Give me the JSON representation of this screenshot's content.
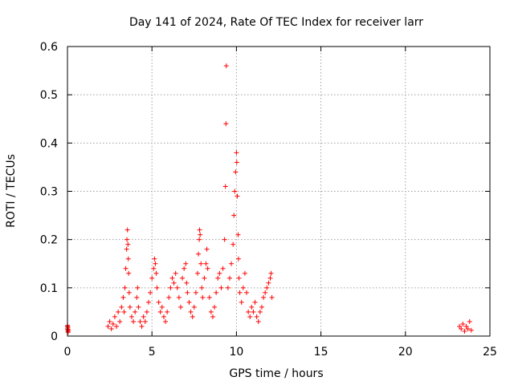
{
  "chart_data": {
    "type": "scatter",
    "title": "Day 141 of 2024, Rate Of TEC Index for receiver larr",
    "xlabel": "GPS time / hours",
    "ylabel": "ROTI / TECUs",
    "xlim": [
      0,
      25
    ],
    "ylim": [
      0,
      0.6
    ],
    "xticks": [
      0,
      5,
      10,
      15,
      20,
      25
    ],
    "yticks": [
      0,
      0.1,
      0.2,
      0.3,
      0.4,
      0.5,
      0.6
    ],
    "xtick_labels": [
      "0",
      "5",
      "10",
      "15",
      "20",
      "25"
    ],
    "ytick_labels": [
      "0",
      "0.1",
      "0.2",
      "0.3",
      "0.4",
      "0.5",
      "0.6"
    ],
    "grid": true,
    "marker": "+",
    "color": "#ff0000",
    "series": [
      {
        "name": "ROTI",
        "points": [
          [
            0.0,
            0.02
          ],
          [
            0.0,
            0.015
          ],
          [
            0.02,
            0.01
          ],
          [
            0.03,
            0.018
          ],
          [
            0.05,
            0.012
          ],
          [
            0.01,
            0.022
          ],
          [
            0.04,
            0.008
          ],
          [
            0.02,
            0.014
          ],
          [
            2.4,
            0.02
          ],
          [
            2.5,
            0.03
          ],
          [
            2.6,
            0.015
          ],
          [
            2.7,
            0.025
          ],
          [
            2.8,
            0.04
          ],
          [
            2.9,
            0.02
          ],
          [
            3.0,
            0.05
          ],
          [
            3.1,
            0.03
          ],
          [
            3.2,
            0.06
          ],
          [
            3.3,
            0.08
          ],
          [
            3.35,
            0.05
          ],
          [
            3.4,
            0.1
          ],
          [
            3.45,
            0.14
          ],
          [
            3.5,
            0.18
          ],
          [
            3.52,
            0.2
          ],
          [
            3.55,
            0.22
          ],
          [
            3.58,
            0.19
          ],
          [
            3.6,
            0.16
          ],
          [
            3.62,
            0.13
          ],
          [
            3.65,
            0.09
          ],
          [
            3.7,
            0.06
          ],
          [
            3.8,
            0.04
          ],
          [
            3.9,
            0.03
          ],
          [
            4.0,
            0.05
          ],
          [
            4.1,
            0.08
          ],
          [
            4.15,
            0.1
          ],
          [
            4.2,
            0.06
          ],
          [
            4.3,
            0.03
          ],
          [
            4.4,
            0.02
          ],
          [
            4.5,
            0.04
          ],
          [
            4.6,
            0.03
          ],
          [
            4.7,
            0.05
          ],
          [
            4.8,
            0.07
          ],
          [
            4.9,
            0.09
          ],
          [
            5.0,
            0.12
          ],
          [
            5.1,
            0.14
          ],
          [
            5.15,
            0.16
          ],
          [
            5.2,
            0.15
          ],
          [
            5.25,
            0.13
          ],
          [
            5.3,
            0.1
          ],
          [
            5.4,
            0.07
          ],
          [
            5.5,
            0.05
          ],
          [
            5.6,
            0.06
          ],
          [
            5.7,
            0.04
          ],
          [
            5.8,
            0.03
          ],
          [
            5.9,
            0.05
          ],
          [
            6.0,
            0.08
          ],
          [
            6.1,
            0.1
          ],
          [
            6.2,
            0.12
          ],
          [
            6.3,
            0.11
          ],
          [
            6.4,
            0.13
          ],
          [
            6.5,
            0.1
          ],
          [
            6.6,
            0.08
          ],
          [
            6.7,
            0.06
          ],
          [
            6.8,
            0.12
          ],
          [
            6.9,
            0.14
          ],
          [
            7.0,
            0.15
          ],
          [
            7.05,
            0.11
          ],
          [
            7.1,
            0.09
          ],
          [
            7.2,
            0.07
          ],
          [
            7.3,
            0.05
          ],
          [
            7.4,
            0.04
          ],
          [
            7.5,
            0.06
          ],
          [
            7.6,
            0.09
          ],
          [
            7.7,
            0.13
          ],
          [
            7.75,
            0.17
          ],
          [
            7.8,
            0.2
          ],
          [
            7.82,
            0.22
          ],
          [
            7.85,
            0.21
          ],
          [
            7.9,
            0.15
          ],
          [
            7.95,
            0.1
          ],
          [
            8.0,
            0.08
          ],
          [
            8.1,
            0.12
          ],
          [
            8.2,
            0.15
          ],
          [
            8.25,
            0.18
          ],
          [
            8.3,
            0.14
          ],
          [
            8.4,
            0.08
          ],
          [
            8.5,
            0.05
          ],
          [
            8.6,
            0.04
          ],
          [
            8.7,
            0.06
          ],
          [
            8.8,
            0.09
          ],
          [
            8.9,
            0.12
          ],
          [
            9.0,
            0.13
          ],
          [
            9.1,
            0.1
          ],
          [
            9.2,
            0.14
          ],
          [
            9.3,
            0.2
          ],
          [
            9.35,
            0.31
          ],
          [
            9.4,
            0.56
          ],
          [
            9.38,
            0.44
          ],
          [
            9.5,
            0.1
          ],
          [
            9.6,
            0.12
          ],
          [
            9.7,
            0.15
          ],
          [
            9.8,
            0.19
          ],
          [
            9.85,
            0.25
          ],
          [
            9.9,
            0.3
          ],
          [
            9.95,
            0.34
          ],
          [
            10.0,
            0.38
          ],
          [
            10.02,
            0.36
          ],
          [
            10.05,
            0.29
          ],
          [
            10.1,
            0.21
          ],
          [
            10.12,
            0.16
          ],
          [
            10.15,
            0.12
          ],
          [
            10.2,
            0.09
          ],
          [
            10.3,
            0.07
          ],
          [
            10.4,
            0.1
          ],
          [
            10.5,
            0.13
          ],
          [
            10.6,
            0.09
          ],
          [
            10.7,
            0.05
          ],
          [
            10.8,
            0.04
          ],
          [
            10.9,
            0.06
          ],
          [
            11.0,
            0.05
          ],
          [
            11.1,
            0.07
          ],
          [
            11.2,
            0.04
          ],
          [
            11.3,
            0.03
          ],
          [
            11.4,
            0.05
          ],
          [
            11.5,
            0.06
          ],
          [
            11.6,
            0.08
          ],
          [
            11.7,
            0.09
          ],
          [
            11.8,
            0.1
          ],
          [
            11.9,
            0.11
          ],
          [
            12.0,
            0.12
          ],
          [
            12.05,
            0.13
          ],
          [
            12.1,
            0.08
          ],
          [
            23.2,
            0.02
          ],
          [
            23.3,
            0.015
          ],
          [
            23.4,
            0.025
          ],
          [
            23.5,
            0.01
          ],
          [
            23.6,
            0.02
          ],
          [
            23.7,
            0.015
          ],
          [
            23.8,
            0.03
          ],
          [
            23.9,
            0.012
          ]
        ]
      }
    ]
  }
}
